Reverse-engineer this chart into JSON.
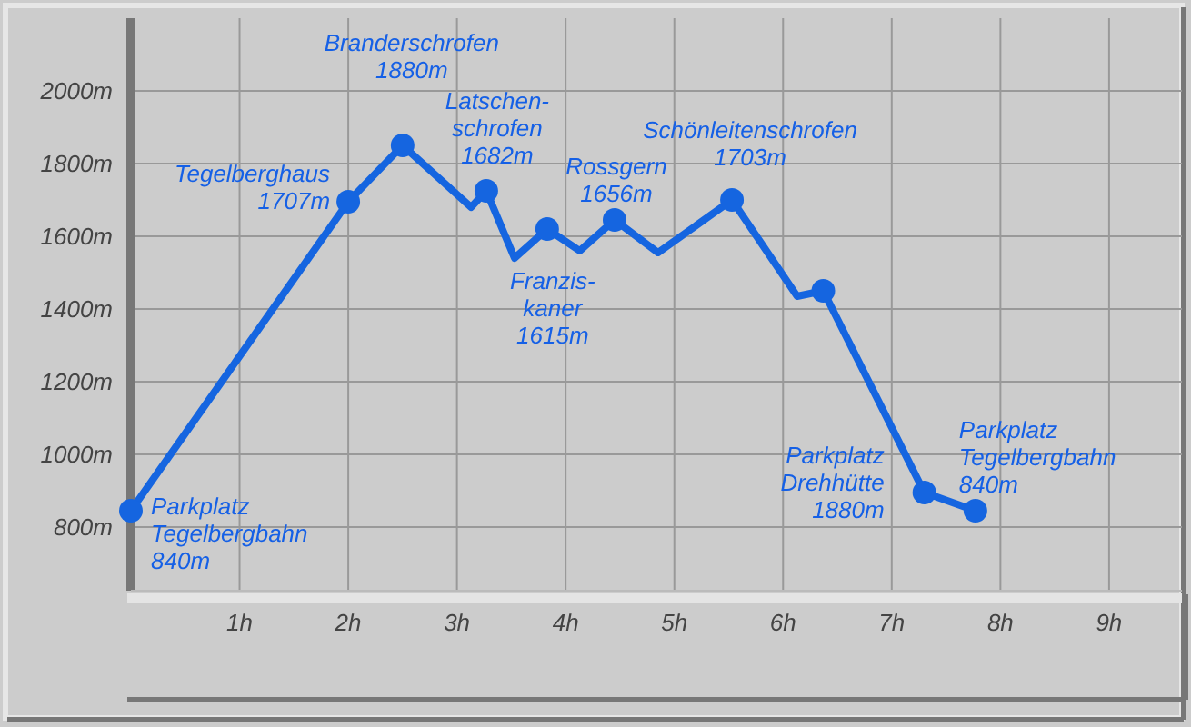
{
  "chart_data": {
    "type": "line",
    "xlim": [
      0,
      9.67
    ],
    "ylim": [
      625,
      2200
    ],
    "xticks": [
      {
        "value": 1,
        "label": "1h"
      },
      {
        "value": 2,
        "label": "2h"
      },
      {
        "value": 3,
        "label": "3h"
      },
      {
        "value": 4,
        "label": "4h"
      },
      {
        "value": 5,
        "label": "5h"
      },
      {
        "value": 6,
        "label": "6h"
      },
      {
        "value": 7,
        "label": "7h"
      },
      {
        "value": 8,
        "label": "8h"
      },
      {
        "value": 9,
        "label": "9h"
      }
    ],
    "yticks": [
      {
        "value": 800,
        "label": "800m"
      },
      {
        "value": 1000,
        "label": "1000m"
      },
      {
        "value": 1200,
        "label": "1200m"
      },
      {
        "value": 1400,
        "label": "1400m"
      },
      {
        "value": 1600,
        "label": "1600m"
      },
      {
        "value": 1800,
        "label": "1800m"
      },
      {
        "value": 2000,
        "label": "2000m"
      }
    ],
    "grid": true,
    "series": [
      {
        "color": "#1565e0",
        "marker": "none",
        "x": [
          0,
          2,
          2.5,
          3.13,
          3.27,
          3.53,
          3.83,
          4.13,
          4.45,
          4.85,
          5.53,
          6.13,
          6.37,
          7.3,
          7.77
        ],
        "values": [
          845,
          1695,
          1850,
          1680,
          1725,
          1540,
          1620,
          1560,
          1645,
          1555,
          1700,
          1435,
          1450,
          895,
          845
        ]
      },
      {
        "type": "scatter",
        "color": "#1565e0",
        "marker": "circle",
        "x": [
          0,
          2,
          2.5,
          3.27,
          3.83,
          4.45,
          5.53,
          6.37,
          7.3,
          7.77
        ],
        "values": [
          845,
          1695,
          1850,
          1725,
          1620,
          1645,
          1700,
          1450,
          895,
          845
        ]
      }
    ],
    "annotations": [
      {
        "text": "Parkplatz\nTegelbergbahn\n840m",
        "x": 0,
        "y": 845
      },
      {
        "text": "Tegelberghaus\n1707m",
        "x": 2,
        "y": 1695
      },
      {
        "text": "Branderschrofen\n1880m",
        "x": 2.5,
        "y": 1850
      },
      {
        "text": "Latschen-\nschrofen\n1682m",
        "x": 3.27,
        "y": 1725
      },
      {
        "text": "Franzis-\nkaner\n1615m",
        "x": 3.83,
        "y": 1620
      },
      {
        "text": "Rossgern\n1656m",
        "x": 4.45,
        "y": 1645
      },
      {
        "text": "Schönleitenschrofen\n1703m",
        "x": 5.53,
        "y": 1700
      },
      {
        "text": "Parkplatz\nDrehhütte\n1880m",
        "x": 7.3,
        "y": 895
      },
      {
        "text": "Parkplatz\nTegelbergbahn\n840m",
        "x": 7.77,
        "y": 845
      }
    ]
  }
}
